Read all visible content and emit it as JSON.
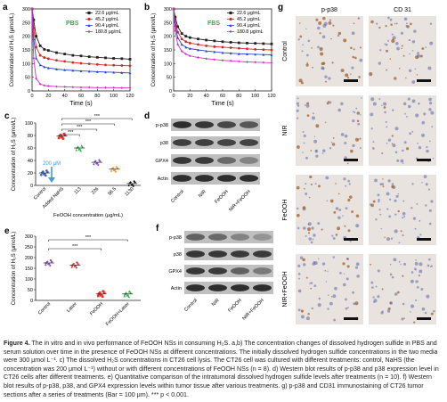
{
  "figure": {
    "panel_letters": [
      "a",
      "b",
      "c",
      "d",
      "e",
      "f",
      "g"
    ],
    "caption_label": "Figure 4.",
    "caption_text": "The in vitro and in vivo performance of FeOOH NSs in consuming H₂S. a,b) The concentration changes of dissolved hydrogen sulfide in PBS and serum solution over time in the presence of FeOOH NSs at different concentrations. The initially dissolved hydrogen sulfide concentrations in the two media were 300 μmol L⁻¹. c) The dissolved H₂S concentrations in CT26 cell lysis. The CT26 cell was cultured with different treatments: control, NaHS (the concentration was 200 μmol L⁻¹) without or with different concentrations of FeOOH NSs (n = 8). d) Western blot results of p-p38 and p38 expression level in CT26 cells after different treatments. e) Quantitative comparison of the intratumoral dissolved hydrogen sulfide levels after treatments (n = 10). f) Western blot results of p-p38, p38, and GPX4 expression levels within tumor tissue after various treatments. g) p-p38 and CD31 immunostaining of CT26 tumor sections after a series of treatments (Bar = 100 μm). *** p < 0.001."
  },
  "chart_data": [
    {
      "panel": "a",
      "type": "line",
      "inset_label": "PBS",
      "xlabel": "Time (s)",
      "ylabel": "Concentration of H₂S (μmol/L)",
      "xlim": [
        0,
        120
      ],
      "ylim": [
        0,
        300
      ],
      "xticks": [
        0,
        20,
        40,
        60,
        80,
        100,
        120
      ],
      "yticks": [
        0,
        50,
        100,
        150,
        200,
        250,
        300
      ],
      "legend_position": "top-right",
      "series": [
        {
          "name": "22.6 μg/mL",
          "color": "#222222",
          "marker": "square",
          "x": [
            0,
            2,
            5,
            10,
            15,
            20,
            30,
            40,
            50,
            60,
            70,
            80,
            90,
            100,
            110,
            120
          ],
          "y": [
            300,
            260,
            200,
            165,
            152,
            148,
            140,
            135,
            130,
            128,
            125,
            123,
            121,
            119,
            118,
            116
          ]
        },
        {
          "name": "45.2 μg/mL",
          "color": "#d62728",
          "marker": "circle",
          "x": [
            0,
            2,
            5,
            10,
            15,
            20,
            30,
            40,
            50,
            60,
            70,
            80,
            90,
            100,
            110,
            120
          ],
          "y": [
            300,
            230,
            160,
            130,
            122,
            118,
            112,
            108,
            104,
            101,
            99,
            97,
            95,
            94,
            93,
            92
          ]
        },
        {
          "name": "90.4 μg/mL",
          "color": "#2747c9",
          "marker": "triangle",
          "x": [
            0,
            2,
            5,
            10,
            15,
            20,
            30,
            40,
            50,
            60,
            70,
            80,
            90,
            100,
            110,
            120
          ],
          "y": [
            300,
            190,
            120,
            95,
            88,
            84,
            80,
            77,
            75,
            73,
            72,
            70,
            69,
            68,
            67,
            66
          ]
        },
        {
          "name": "180.8 μg/mL",
          "color": "#d62fc6",
          "marker": "diamond",
          "x": [
            0,
            2,
            5,
            10,
            15,
            20,
            30,
            40,
            50,
            60,
            70,
            80,
            90,
            100,
            110,
            120
          ],
          "y": [
            300,
            120,
            45,
            25,
            20,
            18,
            16,
            15,
            14,
            13,
            13,
            12,
            12,
            12,
            11,
            11
          ]
        }
      ]
    },
    {
      "panel": "b",
      "type": "line",
      "inset_label": "FBS",
      "xlabel": "Time (s)",
      "ylabel": "Concentration of H₂S (μmol/L)",
      "xlim": [
        0,
        120
      ],
      "ylim": [
        0,
        300
      ],
      "xticks": [
        0,
        20,
        40,
        60,
        80,
        100,
        120
      ],
      "yticks": [
        0,
        50,
        100,
        150,
        200,
        250,
        300
      ],
      "legend_position": "top-right",
      "series": [
        {
          "name": "22.6 μg/mL",
          "color": "#222222",
          "marker": "square",
          "x": [
            0,
            2,
            5,
            10,
            15,
            20,
            30,
            40,
            50,
            60,
            70,
            80,
            90,
            100,
            110,
            120
          ],
          "y": [
            300,
            270,
            235,
            210,
            200,
            195,
            190,
            186,
            183,
            180,
            178,
            176,
            175,
            174,
            173,
            172
          ]
        },
        {
          "name": "45.2 μg/mL",
          "color": "#d62728",
          "marker": "circle",
          "x": [
            0,
            2,
            5,
            10,
            15,
            20,
            30,
            40,
            50,
            60,
            70,
            80,
            90,
            100,
            110,
            120
          ],
          "y": [
            300,
            255,
            215,
            190,
            180,
            175,
            170,
            165,
            162,
            160,
            158,
            156,
            154,
            152,
            151,
            150
          ]
        },
        {
          "name": "90.4 μg/mL",
          "color": "#2747c9",
          "marker": "triangle",
          "x": [
            0,
            2,
            5,
            10,
            15,
            20,
            30,
            40,
            50,
            60,
            70,
            80,
            90,
            100,
            110,
            120
          ],
          "y": [
            300,
            240,
            195,
            170,
            160,
            155,
            150,
            146,
            143,
            140,
            138,
            136,
            135,
            134,
            133,
            132
          ]
        },
        {
          "name": "180.8 μg/mL",
          "color": "#d62fc6",
          "marker": "diamond",
          "x": [
            0,
            2,
            5,
            10,
            15,
            20,
            30,
            40,
            50,
            60,
            70,
            80,
            90,
            100,
            110,
            120
          ],
          "y": [
            300,
            220,
            170,
            145,
            135,
            128,
            122,
            118,
            115,
            112,
            110,
            108,
            106,
            105,
            104,
            103
          ]
        }
      ]
    },
    {
      "panel": "c",
      "type": "scatter",
      "xlabel": "FeOOH concentration (μg/mL)",
      "ylabel": "Concentration of H₂S (μmol/L)",
      "ylim": [
        0,
        100
      ],
      "yticks": [
        0,
        20,
        40,
        60,
        80,
        100
      ],
      "categories": [
        "Control",
        "Added NaHS",
        "113",
        "226",
        "56.5",
        "1130"
      ],
      "means": [
        20,
        79,
        60,
        37,
        26,
        3
      ],
      "colors": [
        "#3e63c8",
        "#e8352c",
        "#2eae4b",
        "#8a4bc7",
        "#f09a2a",
        "#111111"
      ],
      "annotation": "200 μM",
      "significance": [
        "***",
        "***",
        "***",
        "***"
      ]
    },
    {
      "panel": "e",
      "type": "scatter",
      "ylabel": "Concentration of H₂S (μmol/L)",
      "ylim": [
        0,
        300
      ],
      "yticks": [
        0,
        50,
        100,
        150,
        200,
        250,
        300
      ],
      "categories": [
        "Control",
        "Laser",
        "FeOOH",
        "FeOOH+Laser"
      ],
      "means": [
        175,
        165,
        30,
        30
      ],
      "colors": [
        "#8a4bc7",
        "#e8352c",
        "#e8352c",
        "#2eae4b"
      ],
      "significance": [
        "***",
        "***"
      ]
    }
  ],
  "western_d": {
    "rows": [
      "p-p38",
      "p38",
      "GPX4",
      "Actin"
    ],
    "lanes": [
      "Control",
      "NIR",
      "FeOOH",
      "NIR+FeOOH"
    ]
  },
  "western_f": {
    "rows": [
      "p-p38",
      "p38",
      "GPX4",
      "Actin"
    ],
    "lanes": [
      "Control",
      "NIR",
      "FeOOH",
      "NIR+FeOOH"
    ]
  },
  "histology_g": {
    "columns": [
      "p-p38",
      "CD 31"
    ],
    "rows": [
      "Control",
      "NIR",
      "FeOOH",
      "NIR+FeOOH"
    ]
  }
}
